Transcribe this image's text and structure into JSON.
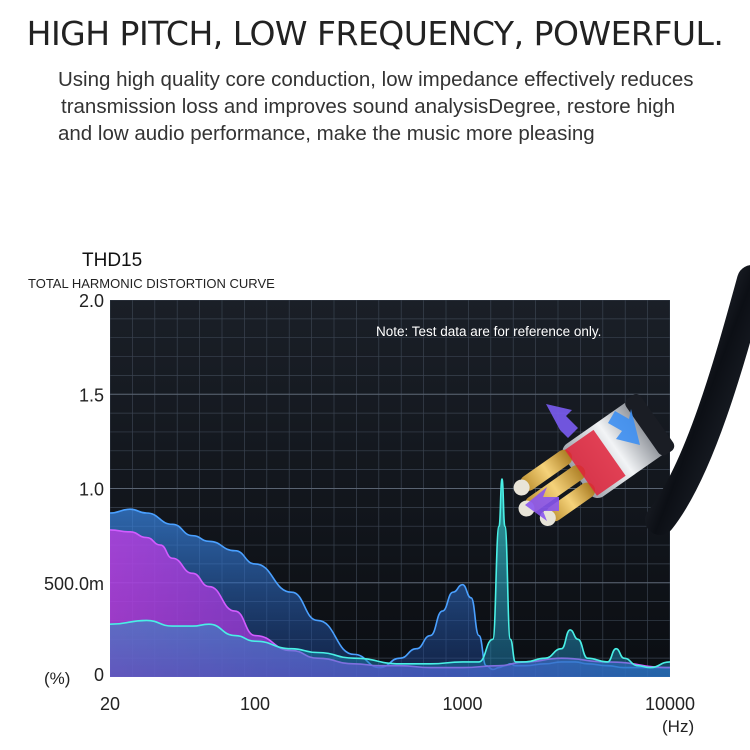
{
  "header": {
    "headline": "HIGH PITCH, LOW FREQUENCY, POWERFUL.",
    "description_lines": [
      "Using high quality core conduction, low impedance effectively reduces",
      "transmission loss and improves sound analysisDegree, restore high",
      "and low audio performance, make the music more pleasing"
    ]
  },
  "chart_data": {
    "type": "area",
    "title": "THD15",
    "subtitle": "TOTAL HARMONIC DISTORTION CURVE",
    "note": "Note: Test data are for reference only.",
    "ylabel": "(%)",
    "xlabel": "(Hz)",
    "x_scale": "log",
    "xlim": [
      20,
      10000
    ],
    "ylim": [
      0,
      2.0
    ],
    "x_ticks": [
      20,
      100,
      1000,
      10000
    ],
    "x_tick_labels": [
      "20",
      "100",
      "1000",
      "10000"
    ],
    "y_ticks": [
      0,
      0.5,
      1.0,
      1.5,
      2.0
    ],
    "y_tick_labels": [
      "0",
      "500.0m",
      "1.0",
      "1.5",
      "2.0"
    ],
    "grid": true,
    "series": [
      {
        "color": "#2f7fd6",
        "x": [
          20,
          25,
          30,
          40,
          50,
          60,
          80,
          100,
          150,
          200,
          300,
          400,
          500,
          600,
          700,
          800,
          900,
          1000,
          1100,
          1200,
          1300,
          1400,
          1500,
          1600,
          1700,
          1800,
          2000,
          2500,
          3000,
          3500,
          4000,
          5000,
          6000,
          8000,
          10000
        ],
        "y": [
          0.87,
          0.89,
          0.87,
          0.81,
          0.75,
          0.72,
          0.67,
          0.6,
          0.45,
          0.3,
          0.12,
          0.05,
          0.1,
          0.15,
          0.22,
          0.35,
          0.45,
          0.49,
          0.42,
          0.22,
          0.06,
          0.04,
          0.05,
          0.06,
          0.07,
          0.06,
          0.06,
          0.07,
          0.08,
          0.08,
          0.07,
          0.06,
          0.05,
          0.05,
          0.05
        ]
      },
      {
        "color": "#b03cd8",
        "x": [
          20,
          25,
          30,
          35,
          40,
          50,
          60,
          80,
          100,
          150,
          200,
          300,
          400,
          500,
          700,
          1000,
          1500,
          2000,
          3000,
          5000,
          10000
        ],
        "y": [
          0.78,
          0.77,
          0.74,
          0.7,
          0.63,
          0.55,
          0.48,
          0.35,
          0.22,
          0.14,
          0.1,
          0.07,
          0.06,
          0.06,
          0.05,
          0.05,
          0.06,
          0.08,
          0.1,
          0.08,
          0.05
        ]
      },
      {
        "color": "#2fc7c2",
        "x": [
          20,
          30,
          40,
          50,
          60,
          80,
          100,
          150,
          200,
          300,
          500,
          700,
          1000,
          1200,
          1400,
          1500,
          1550,
          1600,
          1700,
          1800,
          2000,
          2500,
          3000,
          3300,
          3600,
          4000,
          5000,
          5500,
          6000,
          7000,
          8000,
          10000
        ],
        "y": [
          0.28,
          0.3,
          0.27,
          0.27,
          0.28,
          0.22,
          0.19,
          0.15,
          0.13,
          0.1,
          0.07,
          0.07,
          0.08,
          0.08,
          0.2,
          0.8,
          1.05,
          0.8,
          0.2,
          0.08,
          0.08,
          0.1,
          0.15,
          0.25,
          0.2,
          0.1,
          0.08,
          0.15,
          0.1,
          0.06,
          0.05,
          0.08
        ]
      }
    ]
  }
}
